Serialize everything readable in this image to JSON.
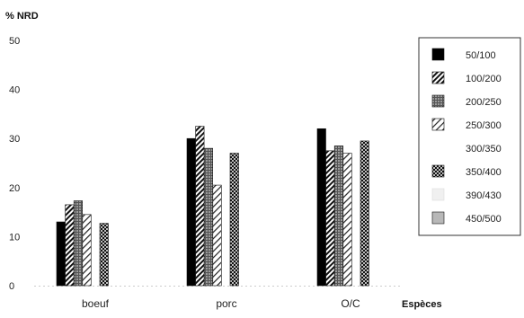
{
  "chart_data": {
    "type": "bar",
    "title": "",
    "ylabel": "% NRD",
    "xlabel": "Espèces",
    "ylim": [
      0,
      50
    ],
    "yticks": [
      0,
      10,
      20,
      30,
      40,
      50
    ],
    "grid": false,
    "legend_position": "right",
    "categories": [
      "boeuf",
      "porc",
      "O/C"
    ],
    "series": [
      {
        "name": "50/100",
        "pattern": "solid",
        "values": [
          13,
          30,
          32
        ]
      },
      {
        "name": "100/200",
        "pattern": "diag-heavy",
        "values": [
          16.5,
          32.5,
          27.5
        ]
      },
      {
        "name": "200/250",
        "pattern": "grid",
        "values": [
          17.3,
          28,
          28.5
        ]
      },
      {
        "name": "250/300",
        "pattern": "diag-light",
        "values": [
          14.5,
          20.5,
          27
        ]
      },
      {
        "name": "300/350",
        "pattern": "none",
        "values": [
          0,
          0,
          0
        ]
      },
      {
        "name": "350/400",
        "pattern": "checker",
        "values": [
          12.7,
          27,
          29.5
        ]
      },
      {
        "name": "390/430",
        "pattern": "faint",
        "values": [
          0,
          0,
          0
        ]
      },
      {
        "name": "450/500",
        "pattern": "gray",
        "values": [
          0,
          0,
          0
        ]
      }
    ]
  }
}
